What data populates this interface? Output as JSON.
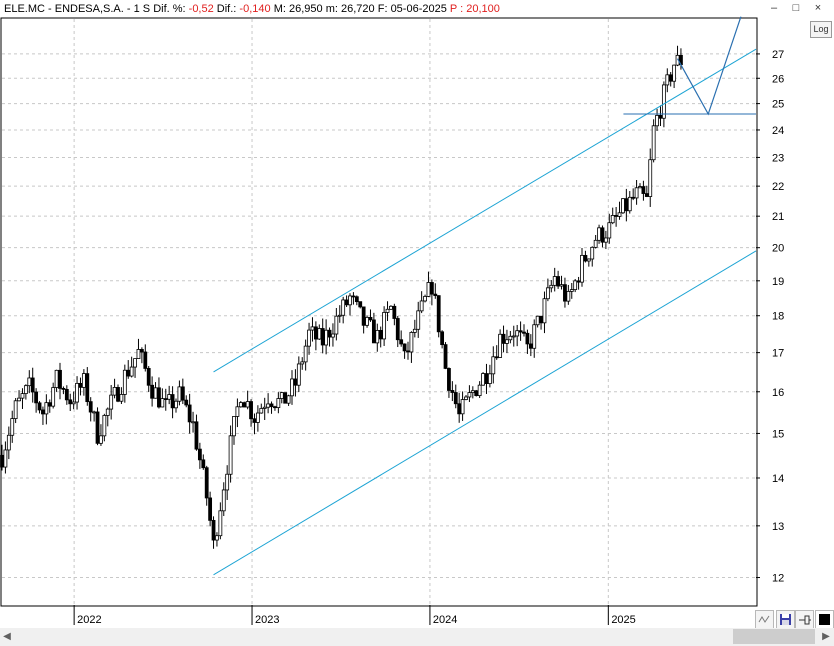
{
  "header": {
    "symbol": "ELE.MC - ENDESA,S.A.",
    "period": "1 S",
    "dif_pct_label": "Dif. %:",
    "dif_pct_value": "-0,52",
    "dif_label": "Dif.:",
    "dif_value": "-0,140",
    "max_label": "M:",
    "max_value": "26,950",
    "min_label": "m:",
    "min_value": "26,720",
    "date_label": "F:",
    "date_value": "05-06-2025",
    "price_label": "P :",
    "price_value": "20,100"
  },
  "window_buttons": {
    "minimize": "–",
    "maximize": "□",
    "close": "×"
  },
  "log_button": "Log",
  "colors": {
    "candle": "#000000",
    "channel": "#1da4d4",
    "projection": "#2a6fb0",
    "grid": "#c8c8c8",
    "label_red": "#e0201f"
  },
  "chart_data": {
    "type": "candlestick",
    "y_scale": "log",
    "ylim": [
      11.5,
      28.5
    ],
    "xlim": [
      "2021-08-06",
      "2025-10-31"
    ],
    "y_ticks": [
      12,
      13,
      14,
      15,
      16,
      17,
      18,
      19,
      20,
      21,
      22,
      23,
      24,
      25,
      26,
      27
    ],
    "x_ticks": [
      "2022",
      "2023",
      "2024",
      "2025"
    ],
    "grid": true,
    "series_close": [
      [
        "2021-08-06",
        14.5
      ],
      [
        "2021-09-03",
        15.6
      ],
      [
        "2021-10-01",
        16.1
      ],
      [
        "2021-10-29",
        15.5
      ],
      [
        "2021-11-26",
        16.3
      ],
      [
        "2021-12-24",
        15.8
      ],
      [
        "2022-01-21",
        16.2
      ],
      [
        "2022-02-18",
        15.0
      ],
      [
        "2022-03-18",
        15.7
      ],
      [
        "2022-04-15",
        16.4
      ],
      [
        "2022-05-13",
        17.0
      ],
      [
        "2022-06-10",
        16.1
      ],
      [
        "2022-07-08",
        15.6
      ],
      [
        "2022-08-05",
        15.9
      ],
      [
        "2022-09-02",
        15.2
      ],
      [
        "2022-09-30",
        13.6
      ],
      [
        "2022-10-14",
        12.6
      ],
      [
        "2022-11-11",
        14.3
      ],
      [
        "2022-12-09",
        16.0
      ],
      [
        "2023-01-06",
        15.4
      ],
      [
        "2023-02-03",
        15.9
      ],
      [
        "2023-03-03",
        15.7
      ],
      [
        "2023-03-31",
        16.2
      ],
      [
        "2023-04-28",
        17.5
      ],
      [
        "2023-05-26",
        17.3
      ],
      [
        "2023-06-23",
        17.9
      ],
      [
        "2023-07-21",
        18.5
      ],
      [
        "2023-08-18",
        17.8
      ],
      [
        "2023-09-15",
        17.4
      ],
      [
        "2023-10-13",
        18.2
      ],
      [
        "2023-11-10",
        16.8
      ],
      [
        "2023-12-08",
        17.9
      ],
      [
        "2024-01-05",
        18.9
      ],
      [
        "2024-02-02",
        16.6
      ],
      [
        "2024-03-01",
        15.4
      ],
      [
        "2024-03-29",
        16.0
      ],
      [
        "2024-04-26",
        16.5
      ],
      [
        "2024-05-24",
        17.4
      ],
      [
        "2024-06-21",
        17.6
      ],
      [
        "2024-07-19",
        17.1
      ],
      [
        "2024-08-16",
        18.0
      ],
      [
        "2024-09-13",
        19.1
      ],
      [
        "2024-10-11",
        18.4
      ],
      [
        "2024-11-08",
        19.5
      ],
      [
        "2024-12-06",
        20.3
      ],
      [
        "2025-01-03",
        20.6
      ],
      [
        "2025-01-31",
        21.2
      ],
      [
        "2025-02-28",
        21.7
      ],
      [
        "2025-03-21",
        21.5
      ],
      [
        "2025-04-04",
        24.0
      ],
      [
        "2025-04-25",
        25.3
      ],
      [
        "2025-05-16",
        26.6
      ],
      [
        "2025-06-05",
        26.8
      ]
    ],
    "trend_lines": [
      {
        "x1": "2022-10-14",
        "y1": 12.05,
        "x2": "2025-10-31",
        "y2": 19.9
      },
      {
        "x1": "2022-10-14",
        "y1": 16.5,
        "x2": "2025-10-31",
        "y2": 27.2
      }
    ],
    "horizontal_level": {
      "x1": "2025-02-01",
      "x2": "2025-10-31",
      "y": 24.6
    },
    "projection": [
      [
        "2025-05-23",
        26.8
      ],
      [
        "2025-07-25",
        24.6
      ],
      [
        "2025-09-30",
        28.6
      ]
    ]
  }
}
